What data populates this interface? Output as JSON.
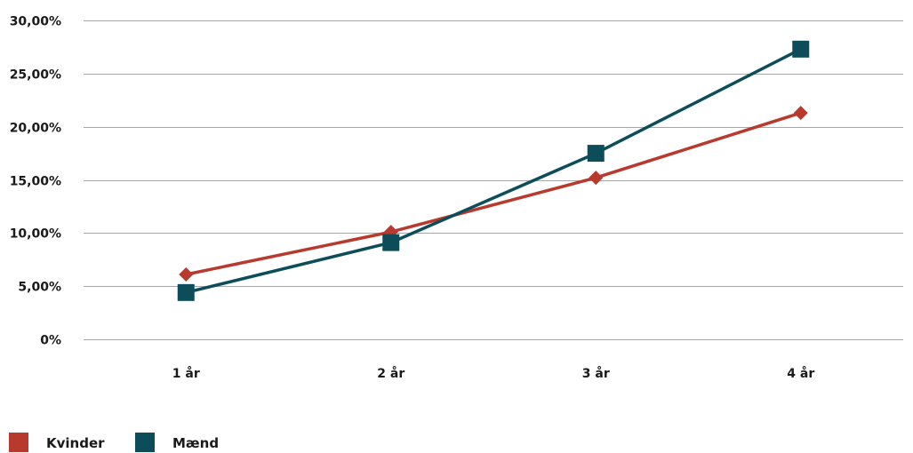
{
  "chart_data": {
    "type": "line",
    "categories": [
      "1 år",
      "2 år",
      "3 år",
      "4 år"
    ],
    "y_ticks": [
      "0%",
      "5,00%",
      "10,00%",
      "15,00%",
      "20,00%",
      "25,00%",
      "30,00%"
    ],
    "ylim": [
      0,
      30
    ],
    "grid": true,
    "legend_position": "bottom-left",
    "series": [
      {
        "name": "Kvinder",
        "values": [
          6.1,
          10.1,
          15.2,
          21.3
        ],
        "color": "#b83a2e",
        "marker": "diamond"
      },
      {
        "name": "Mænd",
        "values": [
          4.4,
          9.1,
          17.5,
          27.3
        ],
        "color": "#0d4d5a",
        "marker": "square"
      }
    ]
  }
}
